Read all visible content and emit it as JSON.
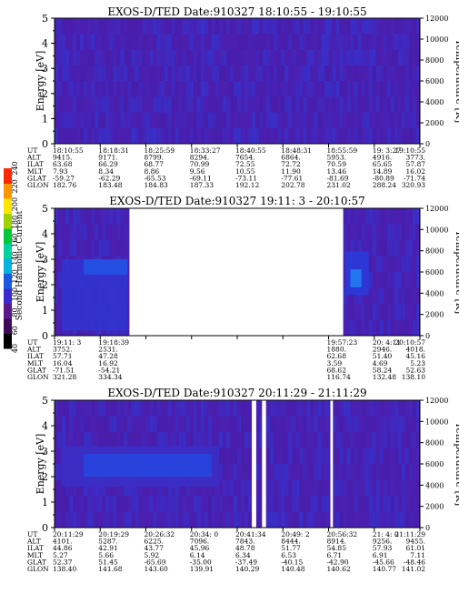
{
  "colors": {
    "background": "#4b1fb0",
    "grid": "#6a3ad0",
    "axis": "#000000",
    "colorbar": [
      "#000000",
      "#3d0a5a",
      "#5a1a8a",
      "#3a2ad0",
      "#1a5ae0",
      "#00b4e0",
      "#00d2a0",
      "#00c83c",
      "#a0d200",
      "#ffe600",
      "#ff9600",
      "#ff2800"
    ]
  },
  "colorbar": {
    "label": "Second Harmonic Current",
    "ticks": [
      "40",
      "60",
      "80",
      "100",
      "120",
      "140",
      "160",
      "180",
      "200",
      "220",
      "240"
    ]
  },
  "chart_data": [
    {
      "type": "heatmap",
      "title": "EXOS-D/TED   Date:910327   18:10:55 - 19:10:55",
      "ylabel": "Energy [eV]",
      "y2label": "Temperature [K]",
      "ylim": [
        0,
        5
      ],
      "yticks": [
        "0",
        "1",
        "2",
        "3",
        "4",
        "5"
      ],
      "y2lim": [
        0,
        12000
      ],
      "y2ticks": [
        "0",
        "2000",
        "4000",
        "6000",
        "8000",
        "10000",
        "12000"
      ],
      "gaps": [],
      "bright_regions": [],
      "table": {
        "row_labels": [
          "UT",
          "ALT",
          "ILAT",
          "MLT",
          "GLAT",
          "GLON"
        ],
        "columns": [
          [
            "18:10:55",
            "9415.",
            "63.68",
            "7.93",
            "-59.27",
            "182.76"
          ],
          [
            "18:18:31",
            "9171.",
            "66.29",
            "8.34",
            "-62.29",
            "183.48"
          ],
          [
            "18:25:59",
            "8799.",
            "68.77",
            "8.86",
            "-65.53",
            "184.83"
          ],
          [
            "18:33:27",
            "8294.",
            "70.99",
            "9.56",
            "-69.11",
            "187.33"
          ],
          [
            "18:40:55",
            "7654.",
            "72.55",
            "10.55",
            "-73.11",
            "192.12"
          ],
          [
            "18:48:31",
            "6864.",
            "72.72",
            "11.90",
            "-77.61",
            "202.78"
          ],
          [
            "18:55:59",
            "5953.",
            "70.59",
            "13.46",
            "-81.69",
            "231.02"
          ],
          [
            "19: 3:27",
            "4916.",
            "65.65",
            "14.89",
            "-80.89",
            "288.24"
          ],
          [
            "19:10:55",
            "3773.",
            "57.87",
            "16.02",
            "-71.74",
            "320.93"
          ]
        ]
      }
    },
    {
      "type": "heatmap",
      "title": "EXOS-D/TED   Date:910327   19:11: 3 - 20:10:57",
      "ylabel": "Energy [eV]",
      "y2label": "Temperature [K]",
      "ylim": [
        0,
        5
      ],
      "yticks": [
        "0",
        "1",
        "2",
        "3",
        "4",
        "5"
      ],
      "y2lim": [
        0,
        12000
      ],
      "y2ticks": [
        "0",
        "2000",
        "4000",
        "6000",
        "8000",
        "10000",
        "12000"
      ],
      "gaps": [
        [
          0.205,
          0.79
        ]
      ],
      "bright_regions": [
        {
          "x0": 0.02,
          "x1": 0.2,
          "e0": 0.2,
          "e1": 3.0,
          "level": 0.5
        },
        {
          "x0": 0.08,
          "x1": 0.2,
          "e0": 2.4,
          "e1": 3.0,
          "level": 0.65
        },
        {
          "x0": 0.795,
          "x1": 0.86,
          "e0": 1.6,
          "e1": 3.3,
          "level": 0.55
        },
        {
          "x0": 0.81,
          "x1": 0.84,
          "e0": 1.9,
          "e1": 2.6,
          "level": 0.8
        }
      ],
      "table": {
        "row_labels": [
          "UT",
          "ALT",
          "ILAT",
          "MLT",
          "GLAT",
          "GLON"
        ],
        "columns": [
          [
            "19:11: 3",
            "3752.",
            "57.71",
            "16.04",
            "-71.51",
            "321.28"
          ],
          [
            "19:18:39",
            "2531.",
            "47.28",
            "16.92",
            "-54.21",
            "334.34"
          ],
          [
            "",
            "",
            "",
            "",
            "",
            ""
          ],
          [
            "",
            "",
            "",
            "",
            "",
            ""
          ],
          [
            "",
            "",
            "",
            "",
            "",
            ""
          ],
          [
            "",
            "",
            "",
            "",
            "",
            ""
          ],
          [
            "19:57:23",
            "1880.",
            "62.68",
            "3.59",
            "68.62",
            "116.74"
          ],
          [
            "20: 4:11",
            "2946.",
            "51.40",
            "4.69",
            "58.24",
            "132.48"
          ],
          [
            "20:10:57",
            "4018.",
            "45.16",
            "5.23",
            "52.63",
            "138.10"
          ]
        ]
      }
    },
    {
      "type": "heatmap",
      "title": "EXOS-D/TED   Date:910327   20:11:29 - 21:11:29",
      "ylabel": "Energy [eV]",
      "y2label": "Temperature [K]",
      "ylim": [
        0,
        5
      ],
      "yticks": [
        "0",
        "1",
        "2",
        "3",
        "4",
        "5"
      ],
      "y2lim": [
        0,
        12000
      ],
      "y2ticks": [
        "0",
        "2000",
        "4000",
        "6000",
        "8000",
        "10000",
        "12000"
      ],
      "gaps": [
        [
          0.54,
          0.552
        ],
        [
          0.568,
          0.579
        ],
        [
          0.755,
          0.762
        ]
      ],
      "bright_regions": [
        {
          "x0": 0.02,
          "x1": 0.45,
          "e0": 1.6,
          "e1": 3.2,
          "level": 0.45
        },
        {
          "x0": 0.08,
          "x1": 0.43,
          "e0": 2.0,
          "e1": 2.9,
          "level": 0.6
        }
      ],
      "table": {
        "row_labels": [
          "UT",
          "ALT",
          "ILAT",
          "MLT",
          "GLAT",
          "GLON"
        ],
        "columns": [
          [
            "20:11:29",
            "4101.",
            "44.86",
            "5.27",
            "52.37",
            "138.40"
          ],
          [
            "20:19:29",
            "5287.",
            "42.91",
            "5.66",
            "51.45",
            "141.68"
          ],
          [
            "20:26:32",
            "6225.",
            "43.77",
            "5.92",
            "-65.69",
            "143.60"
          ],
          [
            "20:34: 0",
            "7096.",
            "45.96",
            "6.14",
            "-35.00",
            "139.91"
          ],
          [
            "20:41:34",
            "7843.",
            "48.78",
            "6.34",
            "-37.49",
            "140.29"
          ],
          [
            "20:49: 2",
            "8444.",
            "51.77",
            "6.53",
            "-40.15",
            "140.48"
          ],
          [
            "20:56:32",
            "8914.",
            "54.85",
            "6.71",
            "-42.90",
            "140.62"
          ],
          [
            "21: 4: 0",
            "9256.",
            "57.93",
            "6.91",
            "-45.66",
            "140.77"
          ],
          [
            "21:11:29",
            "9455.",
            "61.01",
            "7.11",
            "-48.46",
            "141.02"
          ]
        ]
      }
    }
  ]
}
